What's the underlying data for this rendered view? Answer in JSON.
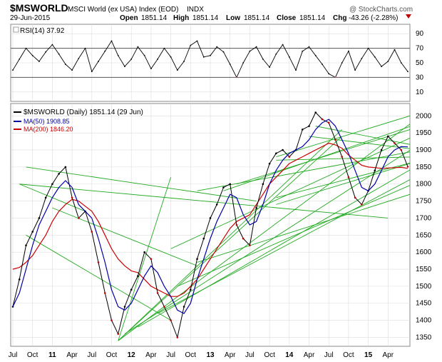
{
  "header": {
    "symbol": "$MSWORLD",
    "name": "MSCI World (ex USA) Index (EOD)",
    "exchange": "INDX",
    "date": "29-Jun-2015",
    "copyright": "@ StockCharts.com",
    "open_label": "Open",
    "open": "1851.14",
    "high_label": "High",
    "high": "1851.14",
    "low_label": "Low",
    "low": "1851.14",
    "close_label": "Close",
    "close": "1851.14",
    "chg_label": "Chg",
    "chg": "-43.26 (-2.28%)"
  },
  "rsi_panel": {
    "label": "RSI(14) 37.92",
    "ticks": [
      "90",
      "70",
      "50",
      "30",
      "10"
    ]
  },
  "price_panel": {
    "legend_main": "$MSWORLD (Daily) 1851.14 (29 Jun)",
    "legend_ma50": "MA(50) 1908.85",
    "legend_ma200": "MA(200) 1846.20",
    "y_ticks": [
      "2000",
      "1950",
      "1900",
      "1850",
      "1800",
      "1750",
      "1700",
      "1650",
      "1600",
      "1550",
      "1500",
      "1450",
      "1400",
      "1350"
    ],
    "x_ticks": [
      "Jul",
      "Oct",
      "11",
      "Apr",
      "Jul",
      "Oct",
      "12",
      "Apr",
      "Jul",
      "Oct",
      "13",
      "Apr",
      "Jul",
      "Oct",
      "14",
      "Apr",
      "Jul",
      "Oct",
      "15",
      "Apr"
    ]
  },
  "colors": {
    "price": "#000000",
    "price_down": "#c00000",
    "ma50": "#0000aa",
    "ma200": "#cc0000",
    "trendline": "#22aa22",
    "grid": "#dddddd",
    "rsi_fill": "#c06060"
  },
  "chart_data": {
    "type": "line",
    "title": "$MSWORLD MSCI World (ex USA) Index (EOD) INDX",
    "y_range": [
      1330,
      2030
    ],
    "rsi_range": [
      0,
      100
    ],
    "x_index_range": [
      0,
      60
    ],
    "x_ticks_index": [
      0,
      3,
      6,
      9,
      12,
      15,
      18,
      21,
      24,
      27,
      30,
      33,
      36,
      39,
      42,
      45,
      48,
      51,
      54,
      57
    ],
    "price_x": [
      0,
      1,
      2,
      3,
      4,
      5,
      6,
      7,
      8,
      9,
      10,
      11,
      12,
      13,
      14,
      15,
      16,
      17,
      18,
      19,
      20,
      21,
      22,
      23,
      24,
      25,
      26,
      27,
      28,
      29,
      30,
      31,
      32,
      33,
      34,
      35,
      36,
      37,
      38,
      39,
      40,
      41,
      42,
      43,
      44,
      45,
      46,
      47,
      48,
      49,
      50,
      51,
      52,
      53,
      54,
      55,
      56,
      57,
      58,
      59,
      60
    ],
    "price_y": [
      1440,
      1520,
      1620,
      1660,
      1700,
      1760,
      1800,
      1830,
      1850,
      1760,
      1700,
      1720,
      1660,
      1570,
      1480,
      1400,
      1360,
      1440,
      1490,
      1530,
      1600,
      1580,
      1480,
      1440,
      1400,
      1350,
      1440,
      1490,
      1580,
      1640,
      1700,
      1740,
      1790,
      1800,
      1680,
      1640,
      1620,
      1730,
      1800,
      1860,
      1890,
      1900,
      1880,
      1900,
      1960,
      1970,
      2010,
      1990,
      1980,
      1930,
      1880,
      1820,
      1760,
      1740,
      1780,
      1840,
      1900,
      1940,
      1920,
      1900,
      1851
    ],
    "ma50_y": [
      1440,
      1480,
      1550,
      1620,
      1680,
      1720,
      1760,
      1790,
      1810,
      1790,
      1740,
      1720,
      1700,
      1640,
      1570,
      1490,
      1440,
      1430,
      1450,
      1490,
      1530,
      1560,
      1540,
      1500,
      1470,
      1430,
      1420,
      1450,
      1520,
      1580,
      1640,
      1690,
      1730,
      1770,
      1760,
      1710,
      1680,
      1690,
      1740,
      1800,
      1840,
      1870,
      1890,
      1900,
      1910,
      1930,
      1960,
      1980,
      1990,
      1970,
      1930,
      1890,
      1840,
      1790,
      1780,
      1800,
      1840,
      1880,
      1900,
      1910,
      1909
    ],
    "ma200_y": [
      1550,
      1555,
      1570,
      1590,
      1620,
      1650,
      1690,
      1720,
      1740,
      1755,
      1750,
      1735,
      1720,
      1690,
      1650,
      1610,
      1580,
      1560,
      1545,
      1540,
      1520,
      1500,
      1490,
      1480,
      1470,
      1470,
      1480,
      1500,
      1520,
      1550,
      1580,
      1610,
      1640,
      1670,
      1690,
      1700,
      1710,
      1740,
      1770,
      1800,
      1820,
      1840,
      1860,
      1870,
      1880,
      1890,
      1900,
      1910,
      1920,
      1915,
      1905,
      1885,
      1870,
      1855,
      1850,
      1848,
      1846,
      1847,
      1848,
      1849,
      1846
    ],
    "rsi_y": [
      40,
      55,
      70,
      60,
      52,
      65,
      75,
      62,
      48,
      40,
      56,
      70,
      38,
      52,
      66,
      80,
      60,
      45,
      55,
      72,
      60,
      42,
      55,
      70,
      58,
      40,
      52,
      74,
      80,
      58,
      60,
      72,
      65,
      48,
      30,
      50,
      66,
      72,
      55,
      44,
      62,
      75,
      58,
      40,
      66,
      72,
      60,
      48,
      35,
      30,
      50,
      66,
      40,
      56,
      70,
      58,
      45,
      52,
      68,
      50,
      38
    ],
    "trendlines": [
      [
        [
          2,
          1850
        ],
        [
          37,
          1750
        ]
      ],
      [
        [
          1,
          1800
        ],
        [
          57,
          1700
        ]
      ],
      [
        [
          1,
          1800
        ],
        [
          11,
          1720
        ]
      ],
      [
        [
          2,
          1650
        ],
        [
          24,
          1400
        ]
      ],
      [
        [
          6,
          1730
        ],
        [
          28,
          1560
        ]
      ],
      [
        [
          16,
          1340
        ],
        [
          50,
          1940
        ]
      ],
      [
        [
          16,
          1340
        ],
        [
          24,
          1820
        ]
      ],
      [
        [
          16,
          1340
        ],
        [
          50,
          1960
        ]
      ],
      [
        [
          16,
          1340
        ],
        [
          62,
          2000
        ]
      ],
      [
        [
          17,
          1360
        ],
        [
          62,
          1920
        ]
      ],
      [
        [
          19,
          1380
        ],
        [
          62,
          1860
        ]
      ],
      [
        [
          22,
          1420
        ],
        [
          62,
          1830
        ]
      ],
      [
        [
          25,
          1500
        ],
        [
          62,
          1810
        ]
      ],
      [
        [
          28,
          1570
        ],
        [
          62,
          1780
        ]
      ],
      [
        [
          24,
          1610
        ],
        [
          62,
          1950
        ]
      ],
      [
        [
          32,
          1780
        ],
        [
          62,
          1980
        ]
      ],
      [
        [
          28,
          1780
        ],
        [
          62,
          1900
        ]
      ],
      [
        [
          40,
          1870
        ],
        [
          62,
          1880
        ]
      ],
      [
        [
          34,
          1800
        ],
        [
          62,
          1970
        ]
      ],
      [
        [
          40,
          1760
        ],
        [
          62,
          1870
        ]
      ],
      [
        [
          40,
          1740
        ],
        [
          62,
          1870
        ]
      ],
      [
        [
          45,
          1940
        ],
        [
          62,
          1900
        ]
      ],
      [
        [
          46,
          1970
        ],
        [
          62,
          1910
        ]
      ],
      [
        [
          40,
          1880
        ],
        [
          62,
          2010
        ]
      ]
    ]
  }
}
